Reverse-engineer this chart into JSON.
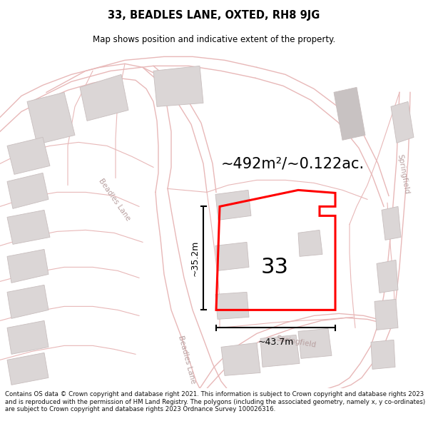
{
  "title_line1": "33, BEADLES LANE, OXTED, RH8 9JG",
  "title_line2": "Map shows position and indicative extent of the property.",
  "area_text": "~492m²/~0.122ac.",
  "number_label": "33",
  "dim_width": "~43.7m",
  "dim_height": "~35.2m",
  "footer_text": "Contains OS data © Crown copyright and database right 2021. This information is subject to Crown copyright and database rights 2023 and is reproduced with the permission of HM Land Registry. The polygons (including the associated geometry, namely x, y co-ordinates) are subject to Crown copyright and database rights 2023 Ordnance Survey 100026316.",
  "map_bg": "#f7f4f4",
  "road_line_color": "#e8b8b8",
  "building_color": "#dbd6d6",
  "building_edge": "#c8bebe",
  "highlight_color": "#ff0000",
  "road_label_color": "#b8a0a0",
  "dim_color": "#000000",
  "title_color": "#000000"
}
